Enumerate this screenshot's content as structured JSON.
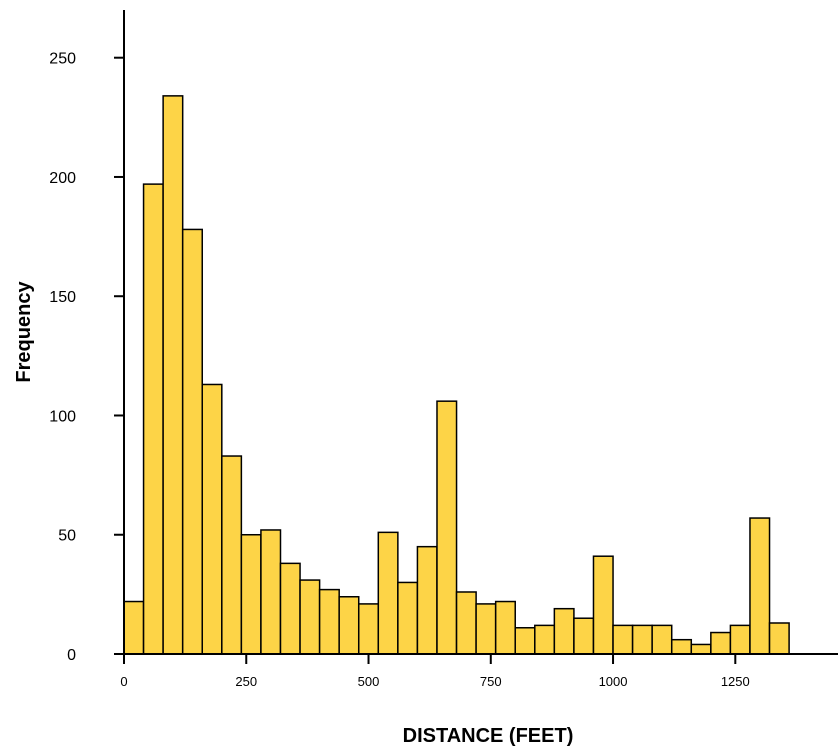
{
  "chart_data": {
    "type": "bar",
    "title": "",
    "xlabel": "DISTANCE (FEET)",
    "ylabel": "Frequency",
    "bin_width": 40,
    "bin_start": 0,
    "values": [
      22,
      197,
      234,
      178,
      113,
      83,
      50,
      52,
      38,
      31,
      27,
      24,
      21,
      51,
      30,
      45,
      106,
      26,
      21,
      22,
      11,
      12,
      19,
      15,
      41,
      12,
      12,
      12,
      6,
      4,
      9,
      12,
      57,
      13
    ],
    "xlim": [
      0,
      1460
    ],
    "ylim": [
      0,
      270
    ],
    "x_ticks": [
      0,
      250,
      500,
      750,
      1000,
      1250
    ],
    "x_tick_labels": [
      "0",
      "250",
      "500",
      "750",
      "1000",
      "1250"
    ],
    "y_ticks": [
      0,
      50,
      100,
      150,
      200,
      250
    ],
    "y_tick_labels": [
      "0",
      "50",
      "100",
      "150",
      "200",
      "250"
    ],
    "grid": false,
    "legend": "none"
  },
  "colors": {
    "bar_fill": "#fdd447",
    "bar_stroke": "#000000"
  }
}
